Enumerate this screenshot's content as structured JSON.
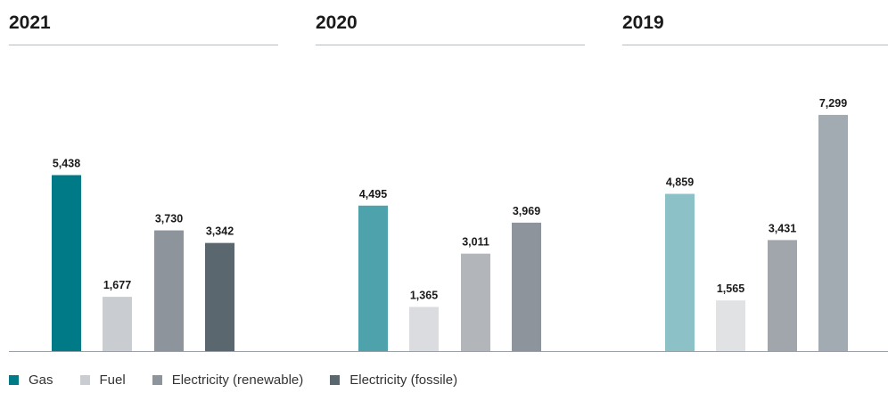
{
  "chart_data": {
    "type": "bar",
    "panels": [
      {
        "title": "2021",
        "categories": [
          "Gas",
          "Fuel",
          "Electricity (renewable)",
          "Electricity (fossile)"
        ],
        "values": [
          5438,
          1677,
          3730,
          3342
        ],
        "labels": [
          "5,438",
          "1,677",
          "3,730",
          "3,342"
        ],
        "colors": [
          "#007a87",
          "#c9ccd0",
          "#8d949b",
          "#5a676e"
        ]
      },
      {
        "title": "2020",
        "categories": [
          "Gas",
          "Fuel",
          "Electricity (renewable)",
          "Electricity (fossile)"
        ],
        "values": [
          4495,
          1365,
          3011,
          3969
        ],
        "labels": [
          "4,495",
          "1,365",
          "3,011",
          "3,969"
        ],
        "colors": [
          "#4ea2ac",
          "#dadcdf",
          "#b2b6ba",
          "#8d949b"
        ]
      },
      {
        "title": "2019",
        "categories": [
          "Gas",
          "Fuel",
          "Electricity (renewable)",
          "Electricity (fossile)"
        ],
        "values": [
          4859,
          1565,
          3431,
          7299
        ],
        "labels": [
          "4,859",
          "1,565",
          "3,431",
          "7,299"
        ],
        "colors": [
          "#8cc1c8",
          "#e1e2e4",
          "#a0a6ab",
          "#a3abb2"
        ]
      }
    ],
    "legend": [
      {
        "label": "Gas",
        "color": "#007a87"
      },
      {
        "label": "Fuel",
        "color": "#c9ccd0"
      },
      {
        "label": "Electricity (renewable)",
        "color": "#8d949b"
      },
      {
        "label": "Electricity (fossile)",
        "color": "#5a676e"
      }
    ],
    "ylim": [
      0,
      7600
    ],
    "grid": false,
    "legend_position": "bottom-left"
  }
}
